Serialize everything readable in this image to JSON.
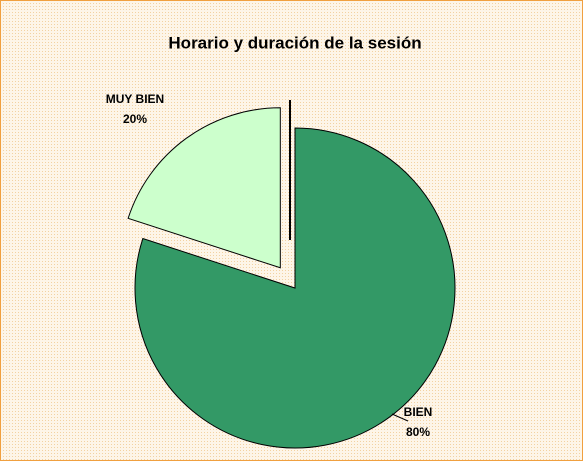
{
  "chart_data": {
    "type": "pie",
    "title": "Horario y duración de la sesión",
    "categories": [
      "BIEN",
      "MUY BIEN"
    ],
    "values": [
      80,
      20
    ],
    "value_labels": [
      "80%",
      "20%"
    ],
    "colors": [
      "#339966",
      "#ccffcc"
    ],
    "explode": [
      false,
      true
    ]
  }
}
